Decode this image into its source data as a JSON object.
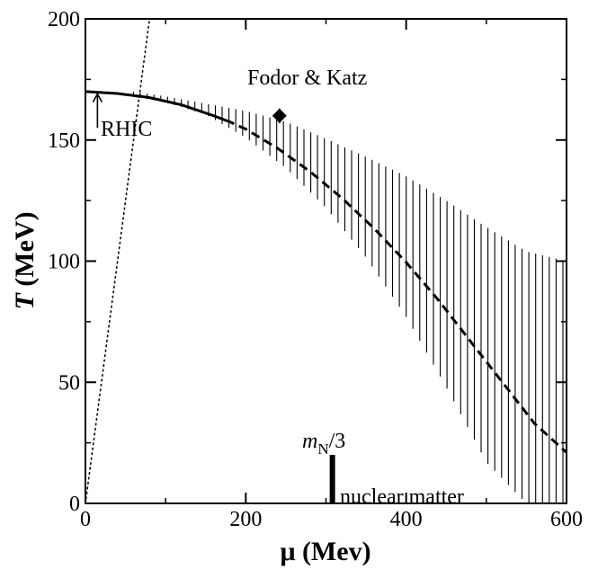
{
  "chart_data": {
    "type": "line",
    "xlabel": "μ (Mev)",
    "ylabel_italic": "T",
    "ylabel_rest": " (MeV)",
    "xlim": [
      0,
      600
    ],
    "ylim": [
      0,
      200
    ],
    "xticks": [
      0,
      200,
      400,
      600
    ],
    "yticks": [
      0,
      50,
      100,
      150,
      200
    ],
    "grid": false,
    "transition_line": {
      "x": [
        0,
        40,
        80,
        120,
        160,
        180,
        200,
        240,
        280,
        320,
        360,
        400,
        440,
        480,
        520,
        560,
        600
      ],
      "y": [
        170,
        169.2,
        167.5,
        164.5,
        160,
        157.5,
        154.5,
        146.5,
        137,
        126,
        113.5,
        99.5,
        84,
        67,
        50,
        33,
        21
      ],
      "solid_until_x": 175
    },
    "uncertainty_band": {
      "x": [
        60,
        100,
        150,
        200,
        250,
        300,
        350,
        400,
        450,
        500,
        550,
        600
      ],
      "upper": [
        170,
        168,
        165,
        162,
        157.5,
        150.5,
        143,
        135,
        125,
        114,
        104,
        100
      ],
      "lower": [
        168,
        165.5,
        160.5,
        151,
        138.5,
        122,
        101.5,
        77,
        48,
        17,
        0,
        0
      ]
    },
    "dotted_line": {
      "x": [
        0,
        40,
        80
      ],
      "y": [
        0,
        100,
        200
      ]
    },
    "fodor_katz_point": {
      "x": 242,
      "y": 160,
      "xerr": 8,
      "yerr": 3,
      "label": "Fodor & Katz"
    },
    "rhic": {
      "label": "RHIC",
      "x": 15,
      "y_from": 155,
      "y_to": 169
    },
    "nuclear_matter": {
      "x": 308,
      "y_top": 20,
      "label": "nuclear matter",
      "mass_label_m": "m",
      "mass_label_sub": "N",
      "mass_label_rest": "/3"
    }
  }
}
